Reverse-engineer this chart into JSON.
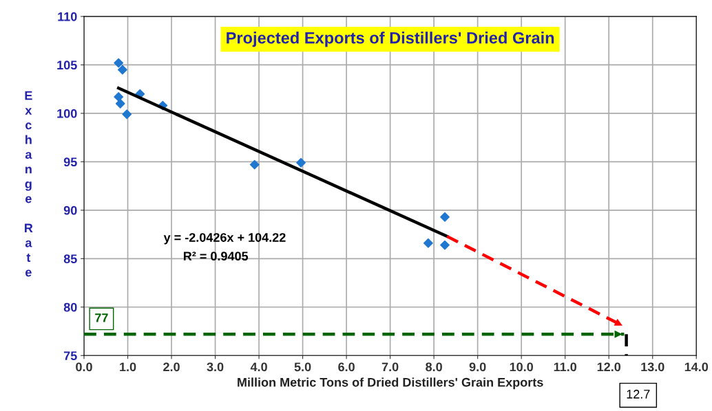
{
  "chart_data": {
    "type": "scatter",
    "title": "Projected Exports of Distillers' Dried Grain",
    "xlabel": "Million Metric Tons of Dried Distillers' Grain Exports",
    "ylabel": "Exchange Rate",
    "xlim": [
      0,
      14
    ],
    "ylim": [
      75,
      110
    ],
    "xticks": [
      {
        "value": 0,
        "label": "0.0"
      },
      {
        "value": 1,
        "label": "1.0"
      },
      {
        "value": 2,
        "label": "2.0"
      },
      {
        "value": 3,
        "label": "3.0"
      },
      {
        "value": 4,
        "label": "4.0"
      },
      {
        "value": 5,
        "label": "5.0"
      },
      {
        "value": 6,
        "label": "6.0"
      },
      {
        "value": 7,
        "label": "7.0"
      },
      {
        "value": 8,
        "label": "8.0"
      },
      {
        "value": 9,
        "label": "9.0"
      },
      {
        "value": 10,
        "label": "10.0"
      },
      {
        "value": 11,
        "label": "11.0"
      },
      {
        "value": 12,
        "label": "12.0"
      },
      {
        "value": 13,
        "label": "13.0"
      },
      {
        "value": 14,
        "label": "14.0"
      }
    ],
    "yticks": [
      75,
      80,
      85,
      90,
      95,
      100,
      105,
      110
    ],
    "grid": true,
    "legend": false,
    "series": [
      {
        "color": "#1f77d0",
        "marker": "diamond",
        "x": [
          0.79,
          0.88,
          0.79,
          0.83,
          0.98,
          1.28,
          1.8,
          3.9,
          4.96,
          7.87,
          8.25,
          8.25
        ],
        "values": [
          105.2,
          104.5,
          101.7,
          101.0,
          99.9,
          102.0,
          100.8,
          94.7,
          94.9,
          86.6,
          89.3,
          86.4
        ]
      },
      {
        "type": "line",
        "color": "#000000",
        "line_style": "solid",
        "x": [
          0.79,
          8.3
        ],
        "values": [
          102.6,
          87.3
        ]
      },
      {
        "type": "line",
        "color": "#ff0000",
        "line_style": "dashed",
        "x": [
          8.3,
          12.35
        ],
        "values": [
          87.3,
          78.0
        ]
      },
      {
        "type": "line",
        "color": "#006400",
        "line_style": "dashed",
        "x": [
          0,
          12.35
        ],
        "values": [
          77.2,
          77.2
        ]
      },
      {
        "type": "line",
        "color": "#000000",
        "line_style": "dashed",
        "x": [
          12.4,
          12.4
        ],
        "values": [
          77.2,
          75
        ]
      }
    ],
    "annotations": [
      "y = -2.0426x + 104.22",
      "R² = 0.9405",
      {
        "text": "77",
        "x": 0.4,
        "y": 77.2
      },
      "12.7"
    ]
  }
}
